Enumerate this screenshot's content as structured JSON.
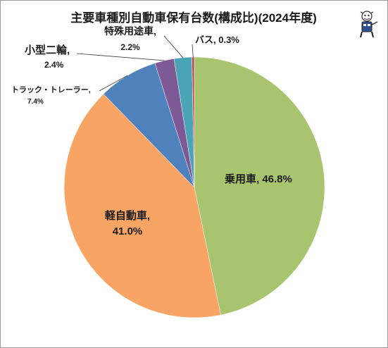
{
  "chart_data": {
    "type": "pie",
    "title": "主要車種別自動車保有台数(構成比)(2024年度)",
    "slices": [
      {
        "label": "乗用車,",
        "value": 46.8,
        "value_text": "46.8%",
        "color": "#a9c46f"
      },
      {
        "label": "軽自動車,",
        "value": 41.0,
        "value_text": "41.0%",
        "color": "#f8a465"
      },
      {
        "label": "トラック・トレーラー,",
        "value": 7.4,
        "value_text": "7.4%",
        "color": "#4f81bd"
      },
      {
        "label": "小型二輪,",
        "value": 2.4,
        "value_text": "2.4%",
        "color": "#7d5a96"
      },
      {
        "label": "特殊用途車,",
        "value": 2.2,
        "value_text": "2.2%",
        "color": "#4aa3b6"
      },
      {
        "label": "バス,",
        "value": 0.3,
        "value_text": "0.3%",
        "color": "#c0504d"
      }
    ],
    "start_angle_deg": 0,
    "direction": "clockwise",
    "legend": "none"
  },
  "icons": {
    "mascot": "mascot-icon"
  }
}
